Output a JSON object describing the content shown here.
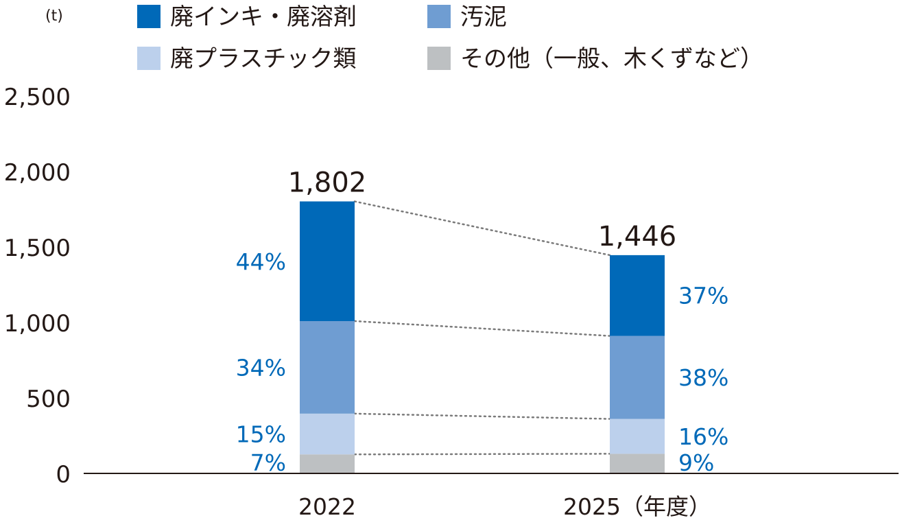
{
  "chart_data": {
    "type": "bar",
    "stacked": true,
    "unit": "(t)",
    "categories": [
      "2022",
      "2025（年度）"
    ],
    "totals": [
      1802,
      1446
    ],
    "yticks": [
      "0",
      "500",
      "1,000",
      "1,500",
      "2,000",
      "2,500"
    ],
    "ylim": [
      0,
      2500
    ],
    "grid": false,
    "legend_position": "top",
    "series": [
      {
        "name": "その他（一般、木くずなど）",
        "color": "#bdc0c2",
        "values": [
          126,
          130
        ],
        "labels": [
          "7%",
          "9%"
        ]
      },
      {
        "name": "廃プラスチック類",
        "color": "#bcd0ec",
        "values": [
          270,
          231
        ],
        "labels": [
          "15%",
          "16%"
        ]
      },
      {
        "name": "汚泥",
        "color": "#6f9dd2",
        "values": [
          613,
          550
        ],
        "labels": [
          "34%",
          "38%"
        ]
      },
      {
        "name": "廃インキ・廃溶剤",
        "color": "#0069b8",
        "values": [
          793,
          535
        ],
        "labels": [
          "44%",
          "37%"
        ]
      }
    ],
    "total_labels": [
      "1,802",
      "1,446"
    ]
  }
}
